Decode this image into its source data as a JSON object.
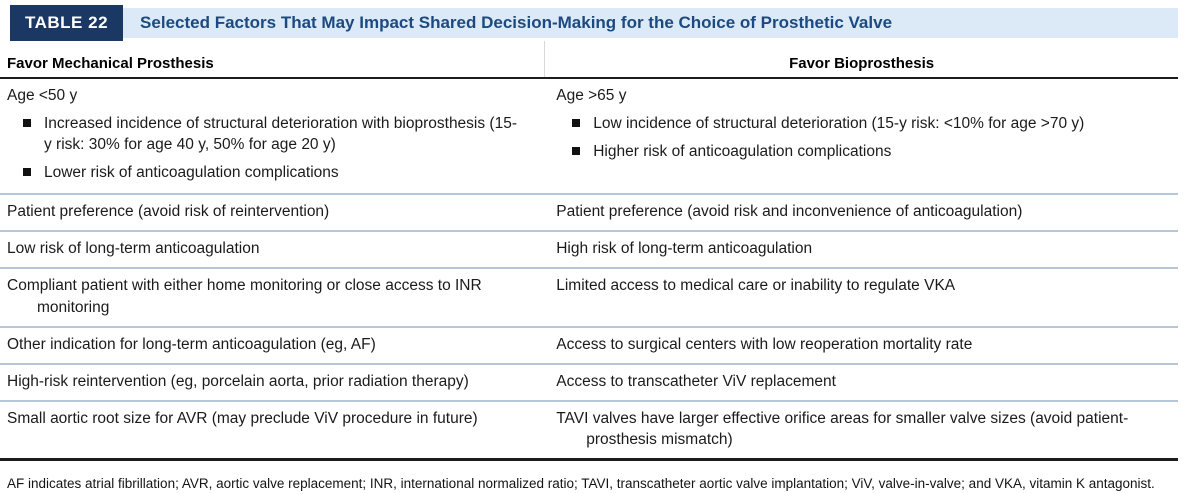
{
  "table": {
    "tag": "TABLE 22",
    "title": "Selected Factors That May Impact Shared Decision-Making for the Choice of Prosthetic Valve",
    "columns": [
      "Favor Mechanical Prosthesis",
      "Favor Bioprosthesis"
    ],
    "rows": [
      {
        "left": {
          "text": "Age <50 y",
          "bullets": [
            "Increased incidence of structural deterioration with bioprosthesis (15-y risk: 30% for age 40 y, 50% for age 20 y)",
            "Lower risk of anticoagulation complications"
          ]
        },
        "right": {
          "text": "Age >65 y",
          "bullets": [
            "Low incidence of structural deterioration (15-y risk: <10% for age >70 y)",
            "Higher risk of anticoagulation complications"
          ]
        }
      },
      {
        "left": {
          "text": "Patient preference (avoid risk of reintervention)",
          "bullets": []
        },
        "right": {
          "text": "Patient preference (avoid risk and inconvenience of anticoagulation)",
          "bullets": []
        }
      },
      {
        "left": {
          "text": "Low risk of long-term anticoagulation",
          "bullets": []
        },
        "right": {
          "text": "High risk of long-term anticoagulation",
          "bullets": []
        }
      },
      {
        "left": {
          "text": "Compliant patient with either home monitoring or close access to INR monitoring",
          "bullets": []
        },
        "right": {
          "text": "Limited access to medical care or inability to regulate VKA",
          "bullets": []
        }
      },
      {
        "left": {
          "text": "Other indication for long-term anticoagulation (eg, AF)",
          "bullets": []
        },
        "right": {
          "text": "Access to surgical centers with low reoperation mortality rate",
          "bullets": []
        }
      },
      {
        "left": {
          "text": "High-risk reintervention (eg, porcelain aorta, prior radiation therapy)",
          "bullets": []
        },
        "right": {
          "text": "Access to transcatheter ViV replacement",
          "bullets": []
        }
      },
      {
        "left": {
          "text": "Small aortic root size for AVR (may preclude ViV procedure in future)",
          "bullets": []
        },
        "right": {
          "text": "TAVI valves have larger effective orifice areas for smaller valve sizes (avoid patient-prosthesis mismatch)",
          "bullets": []
        }
      }
    ],
    "footnote": "AF indicates atrial fibrillation; AVR, aortic valve replacement; INR, international normalized ratio; TAVI, transcatheter aortic valve implantation; ViV, valve-in-valve; and VKA, vitamin K antagonist."
  },
  "colors": {
    "tag_background": "#1b3764",
    "band_background": "#dce9f7",
    "title_text": "#1c4a80",
    "row_separator": "#b6c6d8",
    "heavy_rule": "#1c1c1c"
  }
}
